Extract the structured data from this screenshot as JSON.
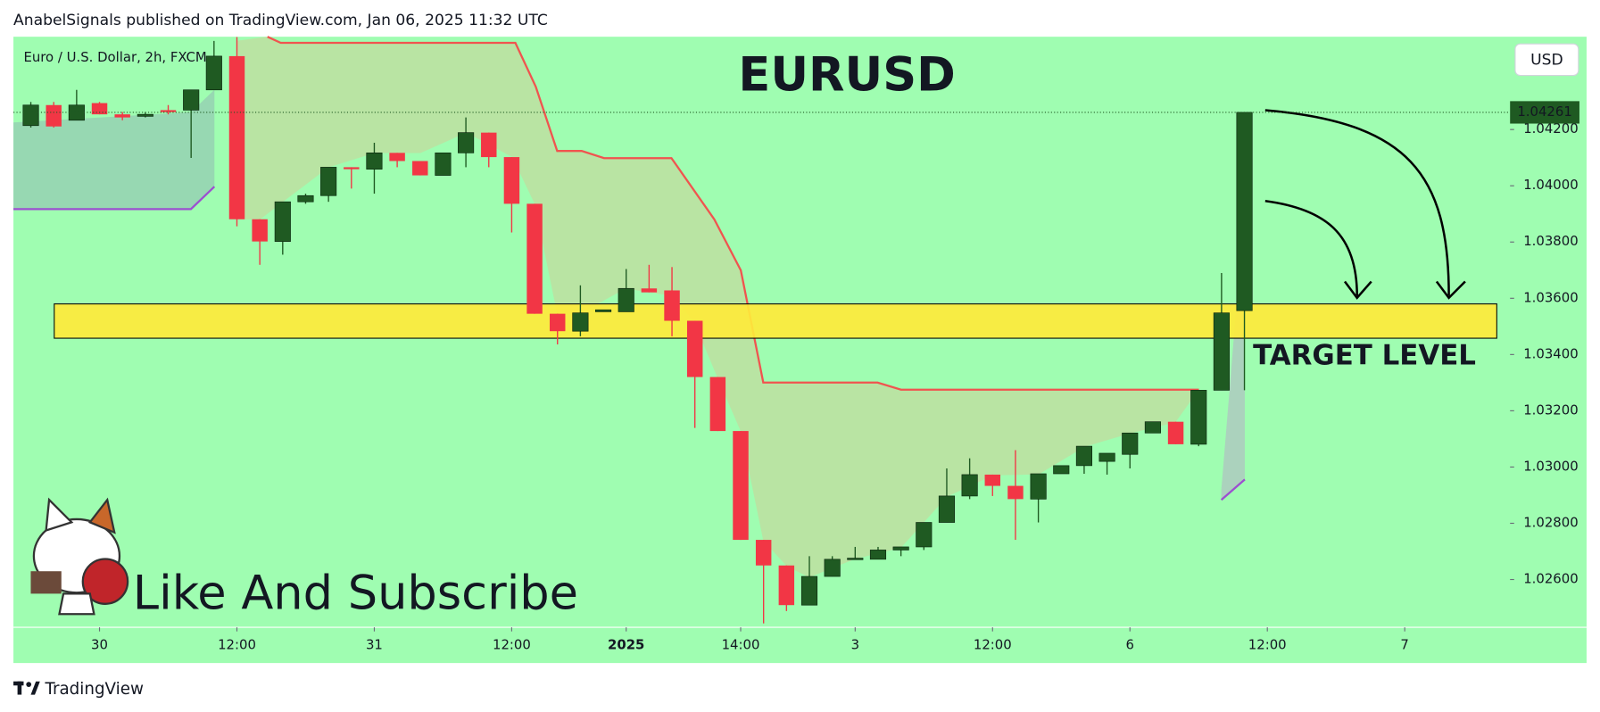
{
  "header": {
    "text": "AnabelSignals published on TradingView.com, Jan 06, 2025 11:32 UTC"
  },
  "chart_data": {
    "type": "candlestick",
    "title": "EURUSD",
    "symbol": "Euro / U.S. Dollar, 2h, FXCM",
    "currency": "USD",
    "annotation": "Like And Subscribe",
    "up_color": "#1f5a22",
    "down_color": "#f23645",
    "background": "#9ffdb1",
    "x": [
      0,
      1,
      2,
      3,
      4,
      5,
      6,
      7,
      8,
      9,
      10,
      11,
      12,
      13,
      14,
      15,
      16,
      17,
      18,
      19,
      20,
      21,
      22,
      23,
      24,
      25,
      26,
      27,
      28,
      29,
      30,
      31,
      32,
      33,
      34,
      35,
      36,
      37,
      38,
      39,
      40,
      41,
      42,
      43,
      44,
      45,
      46,
      47,
      48,
      49,
      50,
      51,
      52,
      53
    ],
    "open": [
      1.04214,
      1.04287,
      1.04233,
      1.04294,
      1.04254,
      1.04247,
      1.04269,
      1.04269,
      1.04341,
      1.04461,
      1.03881,
      1.03802,
      1.03943,
      1.03965,
      1.04066,
      1.04059,
      1.04117,
      1.04088,
      1.04037,
      1.04117,
      1.04189,
      1.04102,
      1.03936,
      1.03545,
      1.03483,
      1.03552,
      1.03552,
      1.03635,
      1.03628,
      1.0352,
      1.0332,
      1.03128,
      1.02741,
      1.0265,
      1.02509,
      1.02611,
      1.02672,
      1.02672,
      1.02705,
      1.02716,
      1.02803,
      1.02897,
      1.02973,
      1.02933,
      1.02886,
      1.02976,
      1.03005,
      1.0302,
      1.03045,
      1.03121,
      1.03161,
      1.03081,
      1.03273,
      1.03556
    ],
    "high": [
      1.04298,
      1.04298,
      1.04341,
      1.04298,
      1.04262,
      1.04262,
      1.04287,
      1.04341,
      1.04515,
      1.04529,
      1.03881,
      1.03943,
      1.03972,
      1.04066,
      1.04066,
      1.04153,
      1.04117,
      1.04088,
      1.04117,
      1.04243,
      1.04189,
      1.04102,
      1.03936,
      1.03545,
      1.03646,
      1.03559,
      1.03704,
      1.03719,
      1.03711,
      1.0352,
      1.0332,
      1.03128,
      1.02741,
      1.0265,
      1.02683,
      1.02683,
      1.02716,
      1.02716,
      1.02716,
      1.02803,
      1.02995,
      1.03031,
      1.02973,
      1.0306,
      1.02976,
      1.03005,
      1.03074,
      1.03049,
      1.03121,
      1.03161,
      1.03161,
      1.03273,
      1.0369,
      1.04261
    ],
    "low": [
      1.04207,
      1.04207,
      1.04233,
      1.04254,
      1.04233,
      1.04243,
      1.04254,
      1.04099,
      1.04341,
      1.03856,
      1.03719,
      1.03755,
      1.03936,
      1.03943,
      1.0399,
      1.03972,
      1.04066,
      1.04037,
      1.04037,
      1.04066,
      1.04066,
      1.03834,
      1.03545,
      1.03436,
      1.03465,
      1.03552,
      1.03552,
      1.03621,
      1.03465,
      1.03139,
      1.03128,
      1.02741,
      1.02444,
      1.02488,
      1.02509,
      1.02611,
      1.02672,
      1.02672,
      1.02683,
      1.02705,
      1.02803,
      1.02886,
      1.02897,
      1.02741,
      1.02803,
      1.02976,
      1.02976,
      1.02973,
      1.02995,
      1.03121,
      1.03081,
      1.03074,
      1.03273,
      1.03273
    ],
    "close": [
      1.04287,
      1.04211,
      1.04287,
      1.04254,
      1.04243,
      1.04254,
      1.04262,
      1.04341,
      1.04461,
      1.03881,
      1.03802,
      1.03943,
      1.03965,
      1.04066,
      1.04059,
      1.04117,
      1.04088,
      1.04037,
      1.04117,
      1.04189,
      1.04102,
      1.03936,
      1.03545,
      1.03483,
      1.03548,
      1.03559,
      1.03635,
      1.03621,
      1.0352,
      1.0332,
      1.03128,
      1.02741,
      1.0265,
      1.02509,
      1.02611,
      1.02672,
      1.02676,
      1.02705,
      1.02716,
      1.02803,
      1.02897,
      1.02973,
      1.02933,
      1.02886,
      1.02976,
      1.03005,
      1.03074,
      1.03049,
      1.03121,
      1.03161,
      1.03081,
      1.03273,
      1.03548,
      1.04261
    ],
    "xlim": [
      -0.76,
      64.6
    ],
    "ylim": [
      1.0243,
      1.0453
    ],
    "xticks": [
      {
        "value": 3,
        "label": "30"
      },
      {
        "value": 9,
        "label": "12:00"
      },
      {
        "value": 15,
        "label": "31"
      },
      {
        "value": 21,
        "label": "12:00"
      },
      {
        "value": 26,
        "label": "2025",
        "bold": true
      },
      {
        "value": 31,
        "label": "14:00"
      },
      {
        "value": 36,
        "label": "3"
      },
      {
        "value": 42,
        "label": "12:00"
      },
      {
        "value": 48,
        "label": "6"
      },
      {
        "value": 54,
        "label": "12:00"
      },
      {
        "value": 60,
        "label": "7"
      }
    ],
    "yticks": [
      {
        "value": 1.026,
        "label": "1.02600"
      },
      {
        "value": 1.028,
        "label": "1.02800"
      },
      {
        "value": 1.03,
        "label": "1.03000"
      },
      {
        "value": 1.032,
        "label": "1.03200"
      },
      {
        "value": 1.034,
        "label": "1.03400"
      },
      {
        "value": 1.036,
        "label": "1.03600"
      },
      {
        "value": 1.038,
        "label": "1.03800"
      },
      {
        "value": 1.04,
        "label": "1.04000"
      },
      {
        "value": 1.042,
        "label": "1.04200"
      }
    ],
    "target_zone": {
      "low": 1.03458,
      "high": 1.0358,
      "label": "TARGET LEVEL",
      "color": "#ffeb3b"
    },
    "grid": false
  },
  "footer": {
    "brand": "TradingView"
  }
}
